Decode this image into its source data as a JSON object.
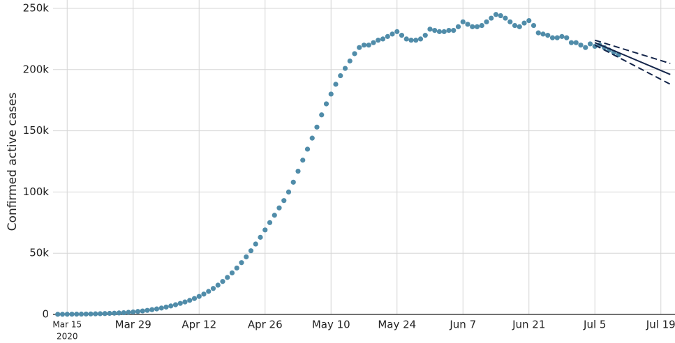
{
  "chart_data": {
    "type": "scatter",
    "ylabel": "Confirmed active cases",
    "x_year_label": "2020",
    "color": "#508ca9",
    "trend_color": "#14254a",
    "grid": true,
    "xlim": [
      "2020-03-12",
      "2020-07-22"
    ],
    "ylim": [
      0,
      250000
    ],
    "yticks": [
      0,
      {
        "value": 50000,
        "label": "50k"
      },
      {
        "value": 100000,
        "label": "100k"
      },
      {
        "value": 150000,
        "label": "150k"
      },
      {
        "value": 200000,
        "label": "200k"
      },
      {
        "value": 250000,
        "label": "250k"
      }
    ],
    "xticks": [
      {
        "value": "2020-03-15",
        "label": "Mar 15"
      },
      {
        "value": "2020-03-29",
        "label": "Mar 29"
      },
      {
        "value": "2020-04-12",
        "label": "Apr 12"
      },
      {
        "value": "2020-04-26",
        "label": "Apr 26"
      },
      {
        "value": "2020-05-10",
        "label": "May 10"
      },
      {
        "value": "2020-05-24",
        "label": "May 24"
      },
      {
        "value": "2020-06-07",
        "label": "Jun 7"
      },
      {
        "value": "2020-06-21",
        "label": "Jun 21"
      },
      {
        "value": "2020-07-05",
        "label": "Jul 5"
      },
      {
        "value": "2020-07-19",
        "label": "Jul 19"
      }
    ],
    "start": "2020-03-13",
    "values": [
      100,
      120,
      150,
      180,
      220,
      270,
      330,
      400,
      480,
      580,
      700,
      850,
      1000,
      1200,
      1400,
      1700,
      2000,
      2400,
      2800,
      3300,
      3900,
      4500,
      5200,
      6000,
      6900,
      7900,
      9000,
      10200,
      11500,
      13000,
      14700,
      16600,
      18800,
      21200,
      23900,
      26900,
      30200,
      33900,
      37900,
      42300,
      47000,
      52000,
      57500,
      63000,
      69000,
      75000,
      81000,
      87000,
      93000,
      100000,
      108000,
      117000,
      126000,
      135000,
      144000,
      153000,
      163000,
      172000,
      180000,
      188000,
      195000,
      201000,
      207000,
      213000,
      218000,
      220000,
      220000,
      222000,
      224000,
      225000,
      227000,
      229000,
      231000,
      228000,
      225000,
      224000,
      224000,
      225000,
      228000,
      233000,
      232000,
      231000,
      231000,
      232000,
      232000,
      235000,
      239000,
      237000,
      235000,
      235000,
      236000,
      239000,
      242000,
      245000,
      244000,
      242000,
      239000,
      236000,
      235000,
      238000,
      240000,
      236000,
      230000,
      229000,
      228000,
      226000,
      226000,
      227000,
      226000,
      222000,
      222000,
      220000,
      218000,
      221000,
      219000,
      220000,
      218000,
      216000,
      214000,
      212000
    ],
    "trend": {
      "x": [
        "2020-07-05",
        "2020-07-21"
      ],
      "values": [
        222000,
        196000
      ],
      "upper": [
        224000,
        205000
      ],
      "lower": [
        220000,
        188000
      ]
    }
  }
}
